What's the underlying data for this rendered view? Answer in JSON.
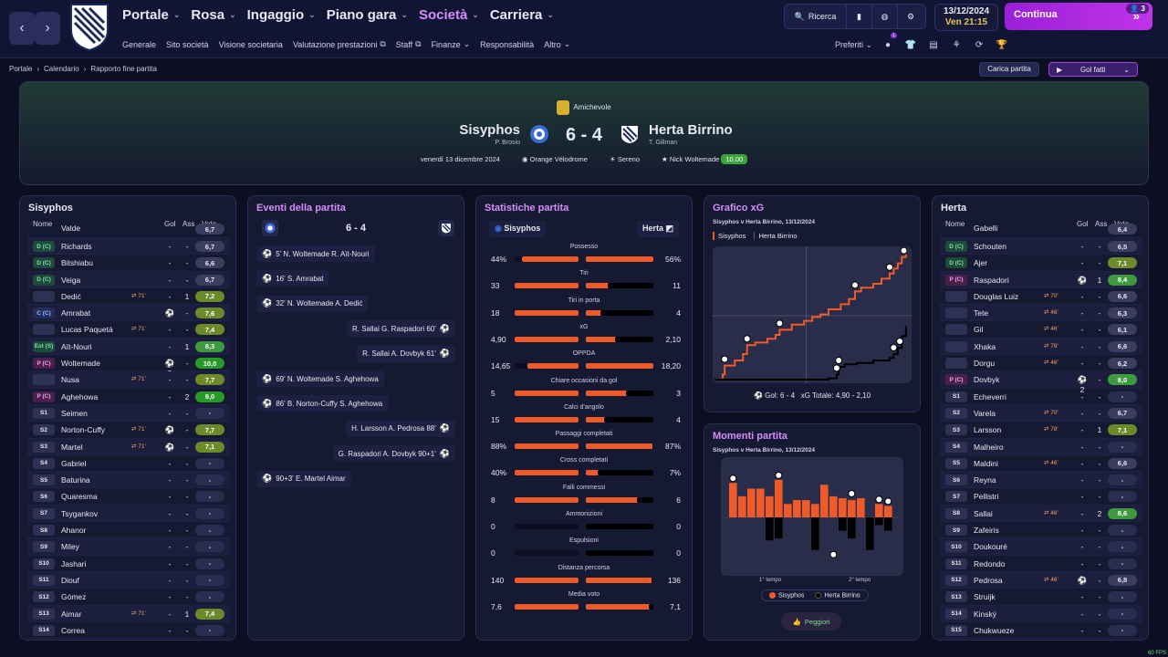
{
  "nav": {
    "main": [
      {
        "label": "Portale",
        "active": false
      },
      {
        "label": "Rosa",
        "active": false
      },
      {
        "label": "Ingaggio",
        "active": false
      },
      {
        "label": "Piano gara",
        "active": false
      },
      {
        "label": "Società",
        "active": true
      },
      {
        "label": "Carriera",
        "active": false
      }
    ],
    "sub": [
      "Generale",
      "Sito società",
      "Visione societaria",
      "Valutazione prestazioni",
      "Staff",
      "Finanze",
      "Responsabilità",
      "Altro"
    ],
    "search_label": "Ricerca",
    "preferiti_label": "Preferiti",
    "preferiti_badge": "1",
    "date": "13/12/2024",
    "day": "Ven",
    "time": "21:15",
    "continue_label": "Continua",
    "continue_badge": "3"
  },
  "breadcrumb": [
    "Portale",
    "Calendario",
    "Rapporto fine partita"
  ],
  "actions": {
    "carica": "Carica partita",
    "gol": "Gol fatti"
  },
  "match": {
    "competition": "Amichevole",
    "home": "Sisyphos",
    "home_manager": "P. Brosio",
    "away": "Herta Birrino",
    "away_manager": "T. Gillman",
    "score": "6 - 4",
    "date": "venerdì 13 dicembre 2024",
    "stadium": "Orange Vélodrome",
    "weather": "Sereno",
    "motm": "Nick Woltemade",
    "motm_rating": "10,00"
  },
  "columns": {
    "name": "Nome",
    "goals": "Gol",
    "assists": "Ass",
    "vote": "Voto"
  },
  "home_roster": {
    "title": "Sisyphos",
    "partial_top": {
      "name": "Valde",
      "vote": "6,7"
    },
    "players": [
      {
        "pos": "D (C)",
        "cls": "d",
        "name": "Richards",
        "sub": "",
        "gol": "-",
        "ass": "-",
        "vote": "6,7",
        "vc": "n"
      },
      {
        "pos": "D (C)",
        "cls": "d",
        "name": "Bitshiabu",
        "sub": "",
        "gol": "-",
        "ass": "-",
        "vote": "6,6",
        "vc": "n"
      },
      {
        "pos": "D (C)",
        "cls": "d",
        "name": "Veiga",
        "sub": "",
        "gol": "-",
        "ass": "-",
        "vote": "6,7",
        "vc": "n"
      },
      {
        "pos": "",
        "cls": "blank",
        "name": "Dedić",
        "sub": "⇄ 71'",
        "gol": "-",
        "ass": "1",
        "vote": "7,2",
        "vc": "g1"
      },
      {
        "pos": "C (C)",
        "cls": "c",
        "name": "Amrabat",
        "sub": "",
        "gol": "⚽",
        "ass": "-",
        "vote": "7,6",
        "vc": "g1"
      },
      {
        "pos": "",
        "cls": "blank",
        "name": "Lucas Paquetá",
        "sub": "⇄ 71'",
        "gol": "-",
        "ass": "-",
        "vote": "7,4",
        "vc": "g1"
      },
      {
        "pos": "Est (S)",
        "cls": "e",
        "name": "Aït-Nouri",
        "sub": "",
        "gol": "-",
        "ass": "1",
        "vote": "8,3",
        "vc": "g2"
      },
      {
        "pos": "P (C)",
        "cls": "p",
        "name": "Woltemade",
        "sub": "",
        "gol": "⚽3",
        "ass": "-",
        "vote": "10,0",
        "vc": "g3"
      },
      {
        "pos": "",
        "cls": "blank",
        "name": "Nusa",
        "sub": "⇄ 71'",
        "gol": "-",
        "ass": "-",
        "vote": "7,7",
        "vc": "g1"
      },
      {
        "pos": "P (C)",
        "cls": "p",
        "name": "Aghehowa",
        "sub": "",
        "gol": "-",
        "ass": "2",
        "vote": "9,0",
        "vc": "g3"
      },
      {
        "pos": "S1",
        "cls": "s",
        "name": "Seimen",
        "sub": "",
        "gol": "-",
        "ass": "-",
        "vote": "-",
        "vc": "d"
      },
      {
        "pos": "S2",
        "cls": "s",
        "name": "Norton-Cuffy",
        "sub": "⇄ 71'",
        "gol": "⚽",
        "ass": "-",
        "vote": "7,7",
        "vc": "g1"
      },
      {
        "pos": "S3",
        "cls": "s",
        "name": "Martel",
        "sub": "⇄ 71'",
        "gol": "⚽",
        "ass": "-",
        "vote": "7,1",
        "vc": "g1"
      },
      {
        "pos": "S4",
        "cls": "s",
        "name": "Gabriel",
        "sub": "",
        "gol": "-",
        "ass": "-",
        "vote": "-",
        "vc": "d"
      },
      {
        "pos": "S5",
        "cls": "s",
        "name": "Baturina",
        "sub": "",
        "gol": "-",
        "ass": "-",
        "vote": "-",
        "vc": "d"
      },
      {
        "pos": "S6",
        "cls": "s",
        "name": "Quaresma",
        "sub": "",
        "gol": "-",
        "ass": "-",
        "vote": "-",
        "vc": "d"
      },
      {
        "pos": "S7",
        "cls": "s",
        "name": "Tsygankov",
        "sub": "",
        "gol": "-",
        "ass": "-",
        "vote": "-",
        "vc": "d"
      },
      {
        "pos": "S8",
        "cls": "s",
        "name": "Ahanor",
        "sub": "",
        "gol": "-",
        "ass": "-",
        "vote": "-",
        "vc": "d"
      },
      {
        "pos": "S9",
        "cls": "s",
        "name": "Miley",
        "sub": "",
        "gol": "-",
        "ass": "-",
        "vote": "-",
        "vc": "d"
      },
      {
        "pos": "S10",
        "cls": "s",
        "name": "Jashari",
        "sub": "",
        "gol": "-",
        "ass": "-",
        "vote": "-",
        "vc": "d"
      },
      {
        "pos": "S11",
        "cls": "s",
        "name": "Diouf",
        "sub": "",
        "gol": "-",
        "ass": "-",
        "vote": "-",
        "vc": "d"
      },
      {
        "pos": "S12",
        "cls": "s",
        "name": "Gómez",
        "sub": "",
        "gol": "-",
        "ass": "-",
        "vote": "-",
        "vc": "d"
      },
      {
        "pos": "S13",
        "cls": "s",
        "name": "Aimar",
        "sub": "⇄ 71'",
        "gol": "-",
        "ass": "1",
        "vote": "7,4",
        "vc": "g1"
      },
      {
        "pos": "S14",
        "cls": "s",
        "name": "Correa",
        "sub": "",
        "gol": "-",
        "ass": "-",
        "vote": "-",
        "vc": "d"
      }
    ]
  },
  "away_roster": {
    "title": "Herta",
    "partial_top": {
      "name": "Gabelli",
      "vote": "6,4"
    },
    "players": [
      {
        "pos": "D (C)",
        "cls": "d",
        "name": "Schouten",
        "sub": "",
        "gol": "-",
        "ass": "-",
        "vote": "6,5",
        "vc": "n"
      },
      {
        "pos": "D (C)",
        "cls": "d",
        "name": "Ajer",
        "sub": "",
        "gol": "-",
        "ass": "-",
        "vote": "7,1",
        "vc": "g1"
      },
      {
        "pos": "P (C)",
        "cls": "p",
        "name": "Raspadori",
        "sub": "",
        "gol": "⚽",
        "ass": "1",
        "vote": "8,4",
        "vc": "g2"
      },
      {
        "pos": "",
        "cls": "blank",
        "name": "Douglas Luiz",
        "sub": "⇄ 70'",
        "gol": "-",
        "ass": "-",
        "vote": "6,6",
        "vc": "n"
      },
      {
        "pos": "",
        "cls": "blank",
        "name": "Tete",
        "sub": "⇄ 46'",
        "gol": "-",
        "ass": "-",
        "vote": "6,3",
        "vc": "n"
      },
      {
        "pos": "",
        "cls": "blank",
        "name": "Gil",
        "sub": "⇄ 46'",
        "gol": "-",
        "ass": "-",
        "vote": "6,1",
        "vc": "n"
      },
      {
        "pos": "",
        "cls": "blank",
        "name": "Xhaka",
        "sub": "⇄ 78'",
        "gol": "-",
        "ass": "-",
        "vote": "6,6",
        "vc": "n"
      },
      {
        "pos": "",
        "cls": "blank",
        "name": "Dorgu",
        "sub": "⇄ 46'",
        "gol": "-",
        "ass": "-",
        "vote": "6,2",
        "vc": "n"
      },
      {
        "pos": "P (C)",
        "cls": "p",
        "name": "Dovbyk",
        "sub": "",
        "gol": "⚽2",
        "ass": "-",
        "vote": "8,0",
        "vc": "g2"
      },
      {
        "pos": "S1",
        "cls": "s",
        "name": "Echeverri",
        "sub": "",
        "gol": "-",
        "ass": "-",
        "vote": "-",
        "vc": "d"
      },
      {
        "pos": "S2",
        "cls": "s",
        "name": "Varela",
        "sub": "⇄ 70'",
        "gol": "-",
        "ass": "-",
        "vote": "6,7",
        "vc": "n"
      },
      {
        "pos": "S3",
        "cls": "s",
        "name": "Larsson",
        "sub": "⇄ 78'",
        "gol": "-",
        "ass": "1",
        "vote": "7,1",
        "vc": "g1"
      },
      {
        "pos": "S4",
        "cls": "s",
        "name": "Malheiro",
        "sub": "",
        "gol": "-",
        "ass": "-",
        "vote": "-",
        "vc": "d"
      },
      {
        "pos": "S5",
        "cls": "s",
        "name": "Maldini",
        "sub": "⇄ 46'",
        "gol": "-",
        "ass": "-",
        "vote": "6,6",
        "vc": "n"
      },
      {
        "pos": "S6",
        "cls": "s",
        "name": "Reyna",
        "sub": "",
        "gol": "-",
        "ass": "-",
        "vote": "-",
        "vc": "d"
      },
      {
        "pos": "S7",
        "cls": "s",
        "name": "Pellistri",
        "sub": "",
        "gol": "-",
        "ass": "-",
        "vote": "-",
        "vc": "d"
      },
      {
        "pos": "S8",
        "cls": "s",
        "name": "Sallai",
        "sub": "⇄ 46'",
        "gol": "-",
        "ass": "2",
        "vote": "8,6",
        "vc": "g2"
      },
      {
        "pos": "S9",
        "cls": "s",
        "name": "Zafeiris",
        "sub": "",
        "gol": "-",
        "ass": "-",
        "vote": "-",
        "vc": "d"
      },
      {
        "pos": "S10",
        "cls": "s",
        "name": "Doukouré",
        "sub": "",
        "gol": "-",
        "ass": "-",
        "vote": "-",
        "vc": "d"
      },
      {
        "pos": "S11",
        "cls": "s",
        "name": "Redondo",
        "sub": "",
        "gol": "-",
        "ass": "-",
        "vote": "-",
        "vc": "d"
      },
      {
        "pos": "S12",
        "cls": "s",
        "name": "Pedrosa",
        "sub": "⇄ 46'",
        "gol": "⚽",
        "ass": "-",
        "vote": "6,8",
        "vc": "n"
      },
      {
        "pos": "S13",
        "cls": "s",
        "name": "Struijk",
        "sub": "",
        "gol": "-",
        "ass": "-",
        "vote": "-",
        "vc": "d"
      },
      {
        "pos": "S14",
        "cls": "s",
        "name": "Kinský",
        "sub": "",
        "gol": "-",
        "ass": "-",
        "vote": "-",
        "vc": "d"
      },
      {
        "pos": "S15",
        "cls": "s",
        "name": "Chukwueze",
        "sub": "",
        "gol": "-",
        "ass": "-",
        "vote": "-",
        "vc": "d"
      }
    ]
  },
  "events": {
    "title": "Eventi della partita",
    "score": "6 - 4",
    "items": [
      {
        "side": "home",
        "text": "5'  N. Woltemade  R. Aït-Nouri"
      },
      {
        "side": "home",
        "text": "16'  S. Amrabat"
      },
      {
        "side": "home",
        "text": "32'  N. Woltemade  A. Dedić"
      },
      {
        "side": "away",
        "text": "R. Sallai  G. Raspadori  60'"
      },
      {
        "side": "away",
        "text": "R. Sallai  A. Dovbyk  61'"
      },
      {
        "side": "home",
        "text": "69'  N. Woltemade  S. Aghehowa"
      },
      {
        "side": "home",
        "text": "86'  B. Norton-Cuffy  S. Aghehowa"
      },
      {
        "side": "away",
        "text": "H. Larsson  A. Pedrosa  88'"
      },
      {
        "side": "away",
        "text": "G. Raspadori  A. Dovbyk  90+1'"
      },
      {
        "side": "home",
        "text": "90+3'  E. Martel  Aimar"
      }
    ]
  },
  "stats": {
    "title": "Statistiche partita",
    "home": "Sisyphos",
    "away": "Herta",
    "rows": [
      {
        "label": "Possesso",
        "l": "44%",
        "r": "56%",
        "lf": 0.88,
        "rf": 1.0
      },
      {
        "label": "Tiri",
        "l": "33",
        "r": "11",
        "lf": 1.0,
        "rf": 0.33
      },
      {
        "label": "Tiri in porta",
        "l": "18",
        "r": "4",
        "lf": 1.0,
        "rf": 0.22
      },
      {
        "label": "xG",
        "l": "4,90",
        "r": "2,10",
        "lf": 1.0,
        "rf": 0.43
      },
      {
        "label": "OPPDA",
        "l": "14,65",
        "r": "18,20",
        "lf": 0.8,
        "rf": 1.0
      },
      {
        "label": "Chiare occasioni da gol",
        "l": "5",
        "r": "3",
        "lf": 1.0,
        "rf": 0.6
      },
      {
        "label": "Calci d'angolo",
        "l": "15",
        "r": "4",
        "lf": 1.0,
        "rf": 0.27
      },
      {
        "label": "Passaggi completati",
        "l": "88%",
        "r": "87%",
        "lf": 1.0,
        "rf": 0.99
      },
      {
        "label": "Cross completati",
        "l": "40%",
        "r": "7%",
        "lf": 1.0,
        "rf": 0.18
      },
      {
        "label": "Falli commessi",
        "l": "8",
        "r": "6",
        "lf": 1.0,
        "rf": 0.75
      },
      {
        "label": "Ammonizioni",
        "l": "0",
        "r": "0",
        "lf": 0,
        "rf": 0
      },
      {
        "label": "Espulsioni",
        "l": "0",
        "r": "0",
        "lf": 0,
        "rf": 0
      },
      {
        "label": "Distanza percorsa",
        "l": "140",
        "r": "136",
        "lf": 1.0,
        "rf": 0.97
      },
      {
        "label": "Media voto",
        "l": "7,6",
        "r": "7,1",
        "lf": 1.0,
        "rf": 0.93
      }
    ]
  },
  "xg": {
    "title": "Grafico xG",
    "subtitle": "Sisyphos v Herta Birrino, 13/12/2024",
    "tabs": [
      "Sisyphos",
      "Herta Birrino"
    ],
    "footer_gol": "Gol:  6 - 4",
    "footer_xg": "xG   Totale:   4,90  -  2,10"
  },
  "chart_data": [
    {
      "type": "line",
      "title": "Grafico xG",
      "subtitle": "Sisyphos v Herta Birrino, 13/12/2024",
      "xlabel": "",
      "ylabel": "",
      "xlim": [
        0,
        95
      ],
      "ylim": [
        0,
        5
      ],
      "grid": true,
      "series": [
        {
          "name": "Sisyphos",
          "color": "#f05a28",
          "x": [
            0,
            4,
            5,
            10,
            14,
            16,
            20,
            26,
            30,
            32,
            38,
            44,
            48,
            52,
            56,
            62,
            66,
            69,
            72,
            78,
            82,
            86,
            88,
            90,
            92,
            94
          ],
          "y": [
            0,
            0.2,
            0.55,
            0.75,
            1.0,
            1.35,
            1.45,
            1.6,
            1.75,
            1.95,
            2.15,
            2.3,
            2.45,
            2.55,
            2.75,
            2.95,
            3.15,
            3.45,
            3.6,
            3.75,
            3.95,
            4.15,
            4.35,
            4.55,
            4.8,
            4.9
          ]
        },
        {
          "name": "Herta Birrino",
          "color": "#000000",
          "x": [
            0,
            56,
            60,
            61,
            64,
            70,
            78,
            86,
            88,
            90,
            92,
            94
          ],
          "y": [
            0,
            0.05,
            0.2,
            0.5,
            0.6,
            0.65,
            0.75,
            0.85,
            1.0,
            1.25,
            1.7,
            2.1
          ]
        }
      ],
      "goals_home": [
        5,
        16,
        32,
        69,
        86,
        93
      ],
      "goals_away": [
        60,
        61,
        88,
        91
      ]
    },
    {
      "type": "bar",
      "title": "Momenti partita",
      "subtitle": "Sisyphos v Herta Birrino, 13/12/2024",
      "categories": [
        "1",
        "2",
        "3",
        "4",
        "5",
        "6",
        "7",
        "8",
        "9",
        "10",
        "11",
        "12",
        "13",
        "14",
        "15",
        "16",
        "17",
        "18"
      ],
      "x_labels": [
        "1° tempo",
        "2° tempo"
      ],
      "series": [
        {
          "name": "Sisyphos",
          "color": "#f05a28",
          "values": [
            0.9,
            0.55,
            0.75,
            0.75,
            0.55,
            0.98,
            0.35,
            0.45,
            0.45,
            0.35,
            0.85,
            0.55,
            0.5,
            0.45,
            0.5,
            0.0,
            0.35,
            0.3
          ]
        },
        {
          "name": "Herta Birrino",
          "color": "#000000",
          "values": [
            0,
            0,
            0,
            0,
            -0.6,
            -0.55,
            0,
            0,
            0,
            -0.85,
            0,
            0,
            -0.35,
            -0.55,
            0,
            -0.85,
            -0.2,
            -0.35
          ]
        }
      ]
    }
  ],
  "moments": {
    "title": "Momenti partita",
    "subtitle": "Sisyphos v Herta Birrino, 13/12/2024",
    "half1": "1° tempo",
    "half2": "2° tempo",
    "legend_home": "Sisyphos",
    "legend_away": "Herta Birrino",
    "peggiori": "Peggiori"
  },
  "fps": "60 FPS",
  "colors": {
    "accent": "#d88cff",
    "home": "#f05a28",
    "away": "#000000",
    "positive": "#3aa33a"
  }
}
